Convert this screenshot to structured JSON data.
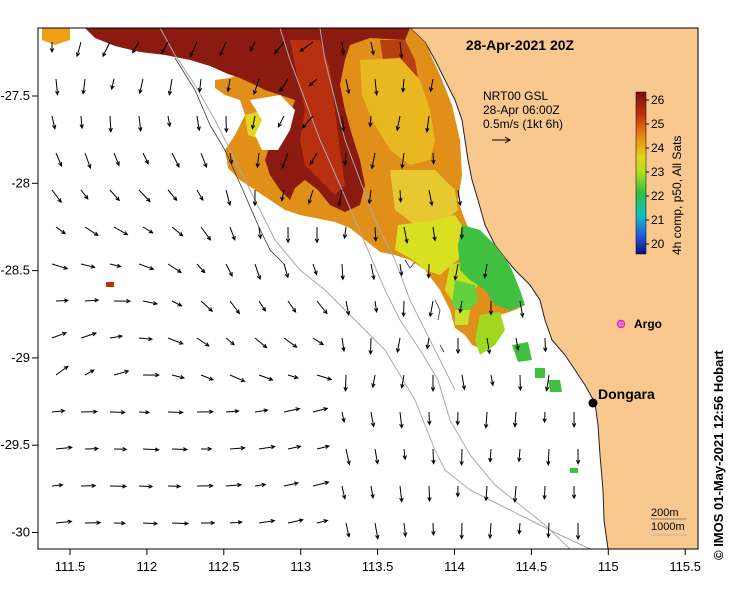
{
  "title": "28-Apr-2021 20Z",
  "vector_legend": {
    "line1": "NRT00 GSL",
    "line2": "28-Apr 06:00Z",
    "line3": "0.5m/s (1kt 6h)"
  },
  "colorbar": {
    "label": "4h comp, p50, All Sats",
    "ticks": [
      "26",
      "25",
      "24",
      "23",
      "22",
      "21",
      "20"
    ]
  },
  "x_ticks": [
    "111.5",
    "112",
    "112.5",
    "113",
    "113.5",
    "114",
    "114.5",
    "115",
    "115.5"
  ],
  "y_ticks": [
    "-27.5",
    "-28",
    "-28.5",
    "-29",
    "-29.5",
    "-30"
  ],
  "places": {
    "argo": "Argo",
    "dongara": "Dongara"
  },
  "depth_legend": {
    "line1": "200m",
    "line2": "1000m"
  },
  "credit": "©  IMOS 01-May-2021 12:56 Hobart",
  "colors": {
    "land": "#f9c88f",
    "sst_dark": "#8b1a10",
    "sst_orange": "#e09010",
    "sst_yellow": "#d8d820",
    "sst_green": "#40c040"
  }
}
